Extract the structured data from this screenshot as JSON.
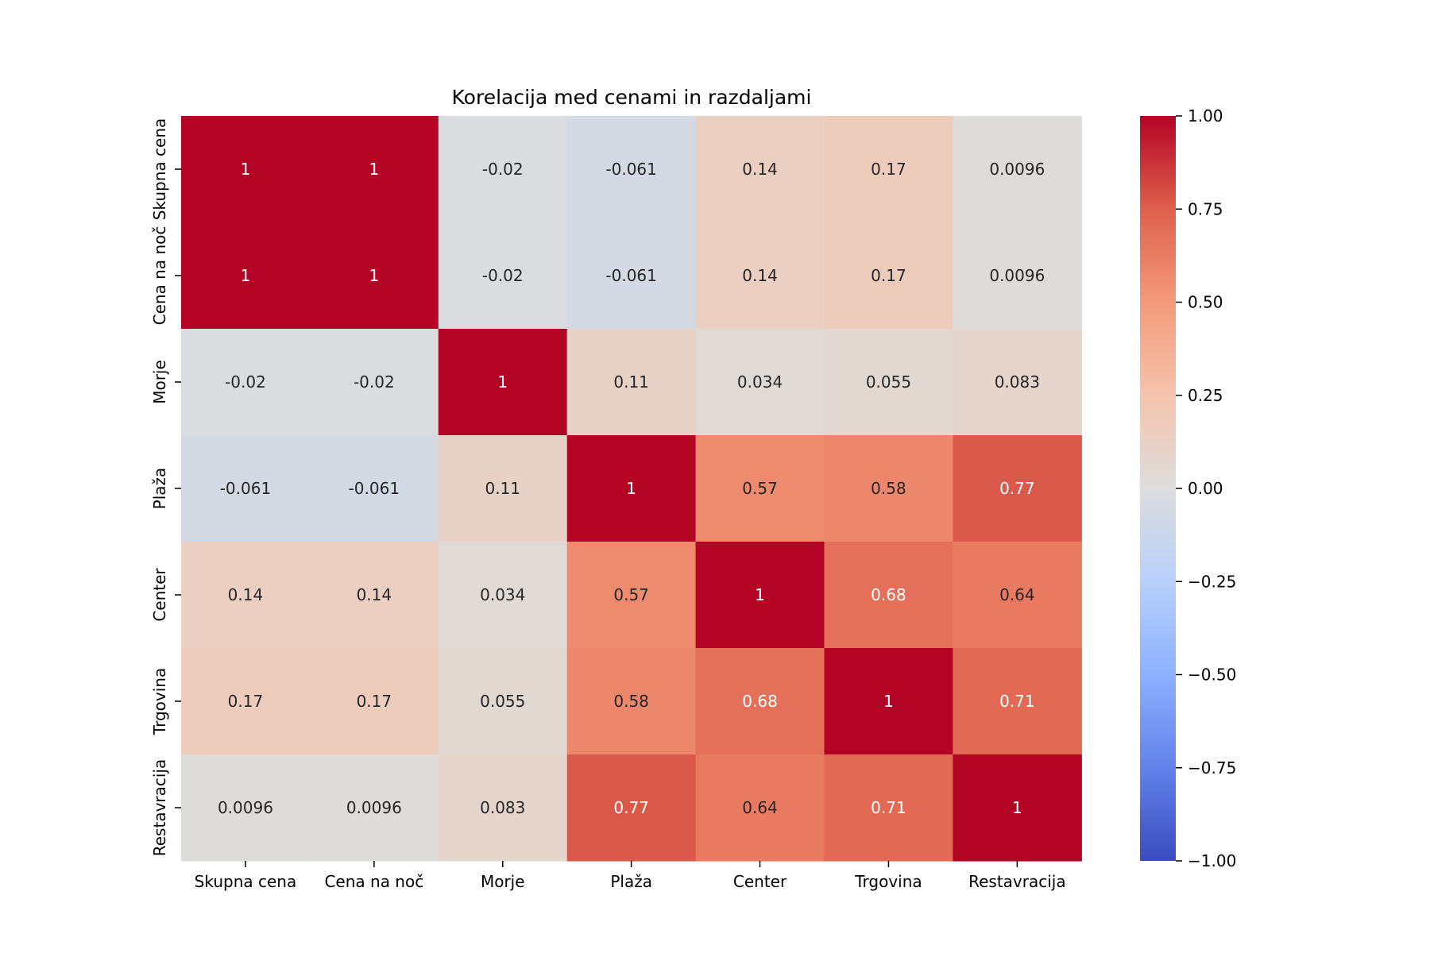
{
  "chart_data": {
    "type": "heatmap",
    "title": "Korelacija med cenami in razdaljami",
    "xlabel": "",
    "ylabel": "",
    "x_categories": [
      "Skupna cena",
      "Cena na noč",
      "Morje",
      "Plaža",
      "Center",
      "Trgovina",
      "Restavracija"
    ],
    "y_categories": [
      "Skupna cena",
      "Cena na noč",
      "Morje",
      "Plaža",
      "Center",
      "Trgovina",
      "Restavracija"
    ],
    "values": [
      [
        1,
        1,
        -0.02,
        -0.061,
        0.14,
        0.17,
        0.0096
      ],
      [
        1,
        1,
        -0.02,
        -0.061,
        0.14,
        0.17,
        0.0096
      ],
      [
        -0.02,
        -0.02,
        1,
        0.11,
        0.034,
        0.055,
        0.083
      ],
      [
        -0.061,
        -0.061,
        0.11,
        1,
        0.57,
        0.58,
        0.77
      ],
      [
        0.14,
        0.14,
        0.034,
        0.57,
        1,
        0.68,
        0.64
      ],
      [
        0.17,
        0.17,
        0.055,
        0.58,
        0.68,
        1,
        0.71
      ],
      [
        0.0096,
        0.0096,
        0.083,
        0.77,
        0.64,
        0.71,
        1
      ]
    ],
    "cell_labels": [
      [
        "1",
        "1",
        "-0.02",
        "-0.061",
        "0.14",
        "0.17",
        "0.0096"
      ],
      [
        "1",
        "1",
        "-0.02",
        "-0.061",
        "0.14",
        "0.17",
        "0.0096"
      ],
      [
        "-0.02",
        "-0.02",
        "1",
        "0.11",
        "0.034",
        "0.055",
        "0.083"
      ],
      [
        "-0.061",
        "-0.061",
        "0.11",
        "1",
        "0.57",
        "0.58",
        "0.77"
      ],
      [
        "0.14",
        "0.14",
        "0.034",
        "0.57",
        "1",
        "0.68",
        "0.64"
      ],
      [
        "0.17",
        "0.17",
        "0.055",
        "0.58",
        "0.68",
        "1",
        "0.71"
      ],
      [
        "0.0096",
        "0.0096",
        "0.083",
        "0.77",
        "0.64",
        "0.71",
        "1"
      ]
    ],
    "colormap": "coolwarm",
    "vmin": -1,
    "vmax": 1,
    "colorbar_ticks": [
      1.0,
      0.75,
      0.5,
      0.25,
      0.0,
      -0.25,
      -0.5,
      -0.75,
      -1.0
    ],
    "colorbar_tick_labels": [
      "1.00",
      "0.75",
      "0.50",
      "0.25",
      "0.00",
      "−0.25",
      "−0.50",
      "−0.75",
      "−1.00"
    ],
    "colors": {
      "low": "#3b4cc0",
      "mid": "#dddddd",
      "high": "#b40426"
    }
  }
}
